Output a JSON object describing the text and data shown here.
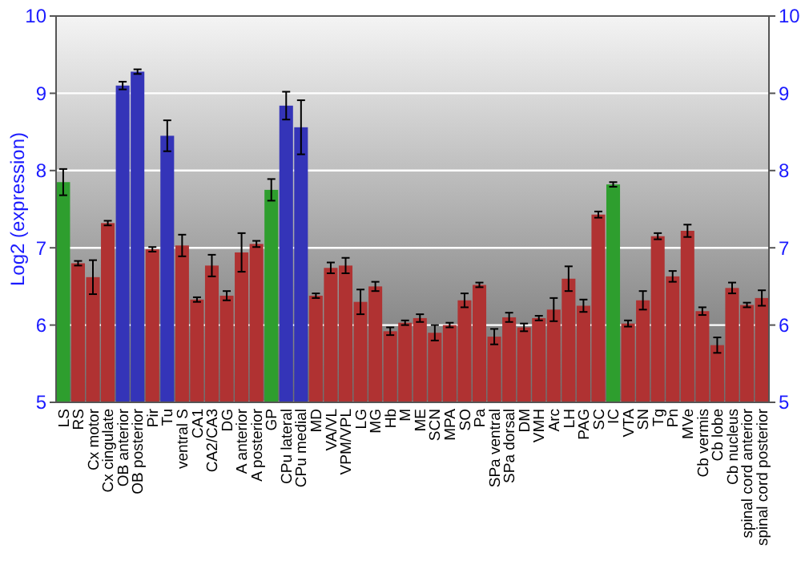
{
  "chart_data": {
    "type": "bar",
    "ylabel": "Log2 (expression)",
    "categories": [
      "LS",
      "RS",
      "Cx motor",
      "Cx cingulate",
      "OB anterior",
      "OB posterior",
      "Pir",
      "Tu",
      "ventral S",
      "CA1",
      "CA2/CA3",
      "DG",
      "A anterior",
      "A posterior",
      "GP",
      "CPu lateral",
      "CPu medial",
      "MD",
      "VA/VL",
      "VPM/VPL",
      "LG",
      "MG",
      "Hb",
      "M",
      "ME",
      "SCN",
      "MPA",
      "SO",
      "Pa",
      "SPa ventral",
      "SPa dorsal",
      "DM",
      "VMH",
      "Arc",
      "LH",
      "PAG",
      "SC",
      "IC",
      "VTA",
      "SN",
      "Tg",
      "Pn",
      "MVe",
      "Cb vermis",
      "Cb lobe",
      "Cb nucleus",
      "spinal cord anterior",
      "spinal cord posterior"
    ],
    "values": [
      7.85,
      6.8,
      6.62,
      7.32,
      9.1,
      9.28,
      6.98,
      8.45,
      7.03,
      6.33,
      6.77,
      6.38,
      6.94,
      7.05,
      7.75,
      8.84,
      8.56,
      6.38,
      6.74,
      6.77,
      6.3,
      6.5,
      5.92,
      6.03,
      6.09,
      5.9,
      6.0,
      6.32,
      6.52,
      5.85,
      6.1,
      5.97,
      6.09,
      6.2,
      6.6,
      6.25,
      7.43,
      7.82,
      6.02,
      6.32,
      7.15,
      6.63,
      7.22,
      6.18,
      5.74,
      6.48,
      6.26,
      6.35
    ],
    "errors": [
      0.17,
      0.03,
      0.22,
      0.03,
      0.05,
      0.03,
      0.03,
      0.2,
      0.14,
      0.03,
      0.14,
      0.06,
      0.25,
      0.04,
      0.14,
      0.18,
      0.35,
      0.03,
      0.07,
      0.1,
      0.16,
      0.06,
      0.05,
      0.03,
      0.05,
      0.1,
      0.03,
      0.09,
      0.03,
      0.1,
      0.06,
      0.05,
      0.03,
      0.15,
      0.16,
      0.08,
      0.04,
      0.03,
      0.04,
      0.12,
      0.04,
      0.07,
      0.08,
      0.05,
      0.1,
      0.07,
      0.03,
      0.1
    ],
    "colors": [
      "#2e9e2e",
      "#b03232",
      "#b03232",
      "#b03232",
      "#3434b8",
      "#3434b8",
      "#b03232",
      "#3434b8",
      "#b03232",
      "#b03232",
      "#b03232",
      "#b03232",
      "#b03232",
      "#b03232",
      "#2e9e2e",
      "#3434b8",
      "#3434b8",
      "#b03232",
      "#b03232",
      "#b03232",
      "#b03232",
      "#b03232",
      "#b03232",
      "#b03232",
      "#b03232",
      "#b03232",
      "#b03232",
      "#b03232",
      "#b03232",
      "#b03232",
      "#b03232",
      "#b03232",
      "#b03232",
      "#b03232",
      "#b03232",
      "#b03232",
      "#b03232",
      "#2e9e2e",
      "#b03232",
      "#b03232",
      "#b03232",
      "#b03232",
      "#b03232",
      "#b03232",
      "#b03232",
      "#b03232",
      "#b03232",
      "#b03232"
    ],
    "ylim": [
      5,
      10
    ],
    "yticks": [
      5,
      6,
      7,
      8,
      9,
      10
    ],
    "y2lim": [
      5,
      10
    ],
    "y2ticks": [
      5,
      6,
      7,
      8,
      9,
      10
    ],
    "grid": "y"
  }
}
